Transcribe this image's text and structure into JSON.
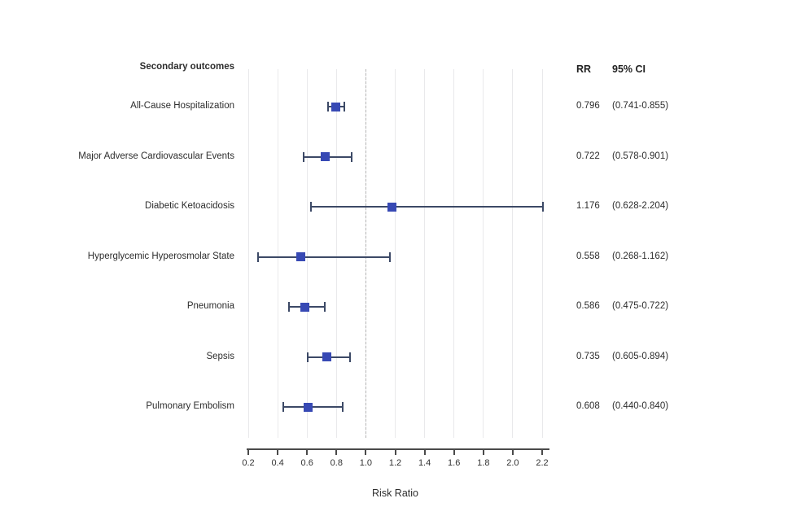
{
  "header": {
    "outcomes_label": "Secondary outcomes",
    "rr_label": "RR",
    "ci_label": "95% CI"
  },
  "chart_data": {
    "type": "scatter",
    "subtype": "forest-plot",
    "title": "Secondary outcomes",
    "xlabel": "Risk Ratio",
    "xlim": [
      0.2,
      2.2
    ],
    "x_ticks": [
      0.2,
      0.4,
      0.6,
      0.8,
      1.0,
      1.2,
      1.4,
      1.6,
      1.8,
      2.0,
      2.2
    ],
    "x_tick_labels": [
      "0.2",
      "0.4",
      "0.6",
      "0.8",
      "1.0",
      "1.2",
      "1.4",
      "1.6",
      "1.8",
      "2.0",
      "2.2"
    ],
    "reference_line": 1.0,
    "grid": true,
    "legend": false,
    "rows": [
      {
        "label": "All-Cause Hospitalization",
        "rr": 0.796,
        "ci_low": 0.741,
        "ci_high": 0.855,
        "rr_text": "0.796",
        "ci_text": "(0.741-0.855)"
      },
      {
        "label": "Major Adverse Cardiovascular Events",
        "rr": 0.722,
        "ci_low": 0.578,
        "ci_high": 0.901,
        "rr_text": "0.722",
        "ci_text": "(0.578-0.901)"
      },
      {
        "label": "Diabetic Ketoacidosis",
        "rr": 1.176,
        "ci_low": 0.628,
        "ci_high": 2.204,
        "rr_text": "1.176",
        "ci_text": "(0.628-2.204)"
      },
      {
        "label": "Hyperglycemic Hyperosmolar State",
        "rr": 0.558,
        "ci_low": 0.268,
        "ci_high": 1.162,
        "rr_text": "0.558",
        "ci_text": "(0.268-1.162)"
      },
      {
        "label": "Pneumonia",
        "rr": 0.586,
        "ci_low": 0.475,
        "ci_high": 0.722,
        "rr_text": "0.586",
        "ci_text": "(0.475-0.722)"
      },
      {
        "label": "Sepsis",
        "rr": 0.735,
        "ci_low": 0.605,
        "ci_high": 0.894,
        "rr_text": "0.735",
        "ci_text": "(0.605-0.894)"
      },
      {
        "label": "Pulmonary Embolism",
        "rr": 0.608,
        "ci_low": 0.44,
        "ci_high": 0.84,
        "rr_text": "0.608",
        "ci_text": "(0.440-0.840)"
      }
    ],
    "colors": {
      "marker": "#3749b4",
      "ci_line": "#3c4966",
      "grid_line": "#e9e9eb",
      "reference_line": "#b5b5b5",
      "axis": "#4a4a4a",
      "text": "#2d2d2d"
    }
  }
}
